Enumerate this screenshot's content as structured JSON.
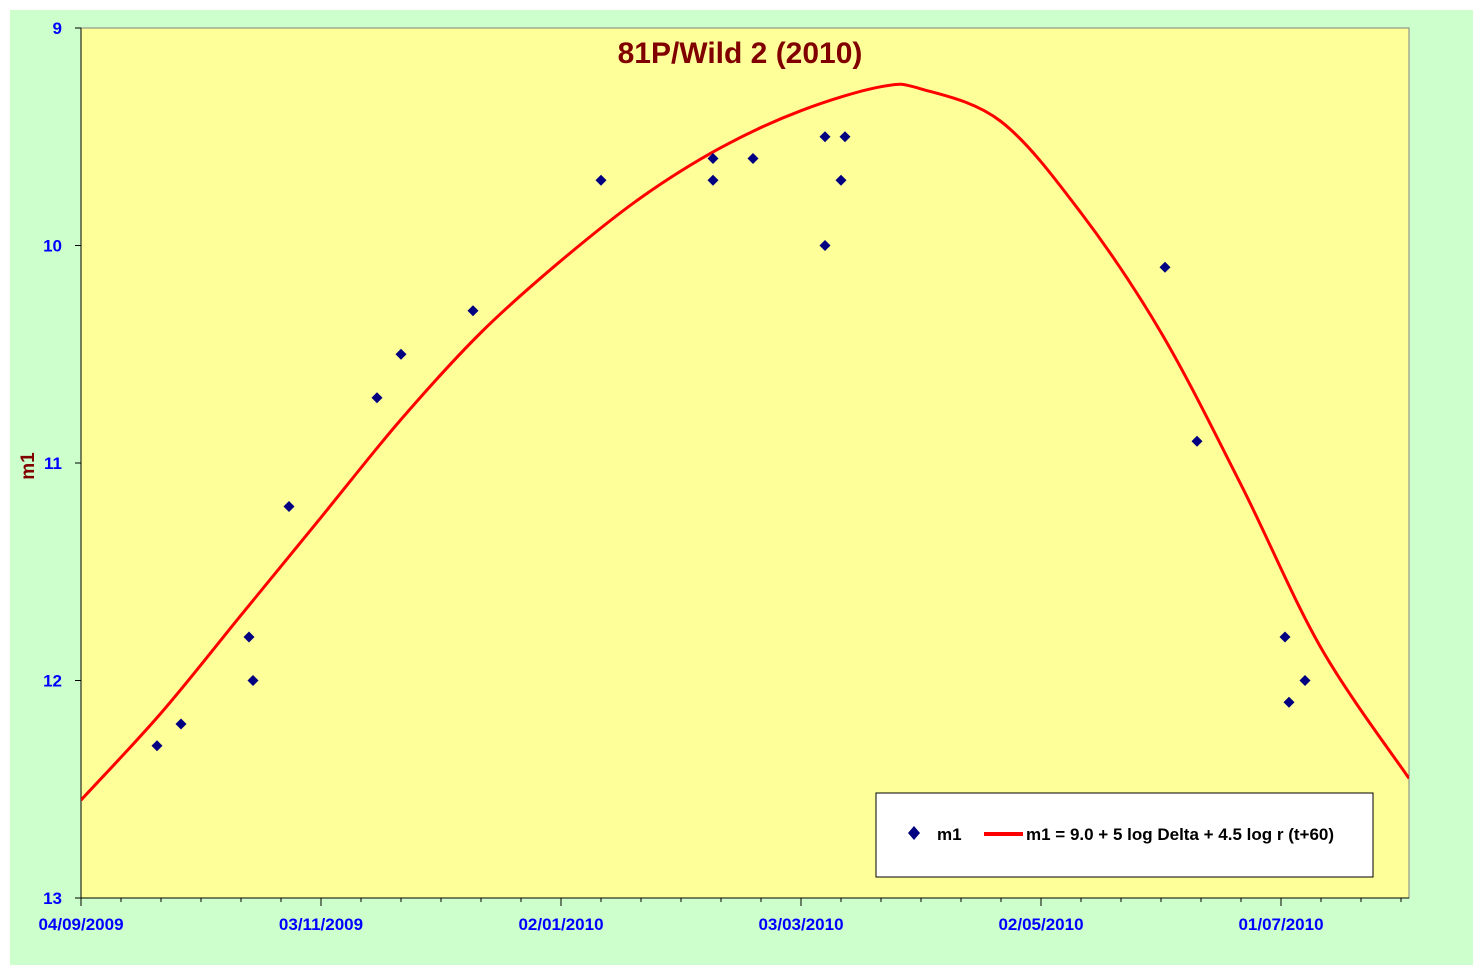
{
  "chart_data": {
    "type": "scatter",
    "title": "81P/Wild 2 (2010)",
    "xlabel": "",
    "ylabel": "m1",
    "x_range": [
      "2009-09-04",
      "2010-08-02"
    ],
    "ylim": [
      9,
      13
    ],
    "y_inverted": true,
    "y_ticks": [
      "9",
      "10",
      "11",
      "12",
      "13"
    ],
    "x_ticks": [
      {
        "date": "2009-09-04",
        "label": "04/09/2009"
      },
      {
        "date": "2009-11-03",
        "label": "03/11/2009"
      },
      {
        "date": "2010-01-02",
        "label": "02/01/2010"
      },
      {
        "date": "2010-03-03",
        "label": "03/03/2010"
      },
      {
        "date": "2010-05-02",
        "label": "02/05/2010"
      },
      {
        "date": "2010-07-01",
        "label": "01/07/2010"
      }
    ],
    "x_minor_tick_interval_days": 10,
    "grid": false,
    "legend_position": "bottom-right",
    "colors": {
      "outer_background": "#ccffcc",
      "plot_background": "#ffff99",
      "title": "#800000",
      "axis_title": "#800000",
      "tick_labels": "#0000ff",
      "points": "#000080",
      "curve": "#ff0000"
    },
    "series": [
      {
        "name": "m1",
        "type": "scatter",
        "marker": "diamond",
        "points": [
          {
            "x": "2009-09-23",
            "y": 12.3
          },
          {
            "x": "2009-09-29",
            "y": 12.2
          },
          {
            "x": "2009-10-16",
            "y": 11.8
          },
          {
            "x": "2009-10-17",
            "y": 12.0
          },
          {
            "x": "2009-10-26",
            "y": 11.2
          },
          {
            "x": "2009-11-17",
            "y": 10.7
          },
          {
            "x": "2009-11-23",
            "y": 10.5
          },
          {
            "x": "2009-12-11",
            "y": 10.3
          },
          {
            "x": "2010-01-12",
            "y": 9.7
          },
          {
            "x": "2010-02-09",
            "y": 9.6
          },
          {
            "x": "2010-02-09",
            "y": 9.7
          },
          {
            "x": "2010-02-19",
            "y": 9.6
          },
          {
            "x": "2010-03-09",
            "y": 9.5
          },
          {
            "x": "2010-03-09",
            "y": 10.0
          },
          {
            "x": "2010-03-13",
            "y": 9.7
          },
          {
            "x": "2010-03-14",
            "y": 9.5
          },
          {
            "x": "2010-06-02",
            "y": 10.1
          },
          {
            "x": "2010-06-10",
            "y": 10.9
          },
          {
            "x": "2010-07-02",
            "y": 11.8
          },
          {
            "x": "2010-07-03",
            "y": 12.1
          },
          {
            "x": "2010-07-07",
            "y": 12.0
          }
        ]
      },
      {
        "name": "m1 = 9.0 + 5 log Delta + 4.5 log r (t+60)",
        "type": "line",
        "points": [
          {
            "x": "2009-09-04",
            "y": 12.55
          },
          {
            "x": "2009-09-24",
            "y": 12.15
          },
          {
            "x": "2009-10-14",
            "y": 11.7
          },
          {
            "x": "2009-11-03",
            "y": 11.25
          },
          {
            "x": "2009-11-23",
            "y": 10.8
          },
          {
            "x": "2009-12-13",
            "y": 10.4
          },
          {
            "x": "2010-01-02",
            "y": 10.07
          },
          {
            "x": "2010-01-22",
            "y": 9.78
          },
          {
            "x": "2010-02-11",
            "y": 9.55
          },
          {
            "x": "2010-03-03",
            "y": 9.38
          },
          {
            "x": "2010-03-23",
            "y": 9.27
          },
          {
            "x": "2010-04-02",
            "y": 9.28
          },
          {
            "x": "2010-04-22",
            "y": 9.43
          },
          {
            "x": "2010-05-12",
            "y": 9.85
          },
          {
            "x": "2010-06-01",
            "y": 10.4
          },
          {
            "x": "2010-06-21",
            "y": 11.1
          },
          {
            "x": "2010-07-11",
            "y": 11.85
          },
          {
            "x": "2010-08-02",
            "y": 12.45
          }
        ]
      }
    ]
  }
}
